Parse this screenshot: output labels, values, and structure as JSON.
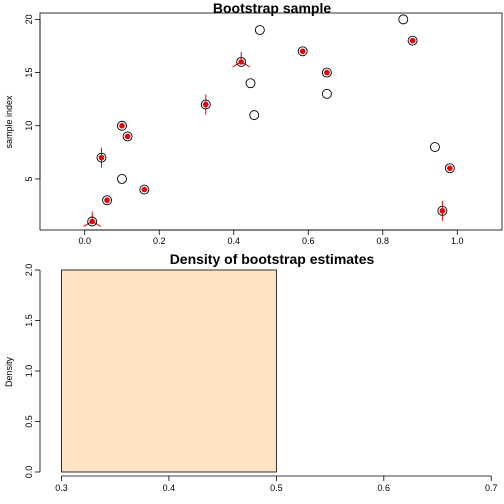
{
  "colors": {
    "point_stroke": "#000000",
    "fill_red": "#e8000b",
    "tick_red": "#e8000b",
    "bar_fill": "#ffe4c4",
    "bar_stroke": "#000000"
  },
  "chart_data": [
    {
      "type": "scatter",
      "title": "Bootstrap sample",
      "xlabel": "",
      "ylabel": "sample index",
      "xlim": [
        -0.12,
        1.12
      ],
      "ylim": [
        0.2,
        20.6
      ],
      "xticks": [
        0.0,
        0.2,
        0.4,
        0.6,
        0.8,
        1.0
      ],
      "xtick_labels": [
        "0.0",
        "0.2",
        "0.4",
        "0.6",
        "0.8",
        "1.0"
      ],
      "yticks": [
        5,
        10,
        15,
        20
      ],
      "ytick_labels": [
        "5",
        "10",
        "15",
        "20"
      ],
      "points": [
        {
          "index": 1,
          "x": 0.02,
          "times": 3
        },
        {
          "index": 2,
          "x": 0.96,
          "times": 2
        },
        {
          "index": 3,
          "x": 0.06,
          "times": 1
        },
        {
          "index": 4,
          "x": 0.16,
          "times": 1
        },
        {
          "index": 5,
          "x": 0.1,
          "times": 0
        },
        {
          "index": 6,
          "x": 0.98,
          "times": 1
        },
        {
          "index": 7,
          "x": 0.045,
          "times": 2
        },
        {
          "index": 8,
          "x": 0.94,
          "times": 0
        },
        {
          "index": 9,
          "x": 0.115,
          "times": 1
        },
        {
          "index": 10,
          "x": 0.1,
          "times": 1
        },
        {
          "index": 11,
          "x": 0.455,
          "times": 0
        },
        {
          "index": 12,
          "x": 0.325,
          "times": 2
        },
        {
          "index": 13,
          "x": 0.65,
          "times": 0
        },
        {
          "index": 14,
          "x": 0.445,
          "times": 0
        },
        {
          "index": 15,
          "x": 0.65,
          "times": 1
        },
        {
          "index": 16,
          "x": 0.42,
          "times": 3
        },
        {
          "index": 17,
          "x": 0.585,
          "times": 1
        },
        {
          "index": 18,
          "x": 0.88,
          "times": 1
        },
        {
          "index": 19,
          "x": 0.47,
          "times": 0
        },
        {
          "index": 20,
          "x": 0.855,
          "times": 0
        }
      ]
    },
    {
      "type": "bar",
      "title": "Density of bootstrap estimates",
      "xlabel": "",
      "ylabel": "Density",
      "xlim": [
        0.28,
        0.71
      ],
      "ylim": [
        0,
        2.0
      ],
      "xticks": [
        0.3,
        0.4,
        0.5,
        0.6,
        0.7
      ],
      "xtick_labels": [
        "0.3",
        "0.4",
        "0.5",
        "0.6",
        "0.7"
      ],
      "yticks": [
        0.0,
        0.5,
        1.0,
        1.5,
        2.0
      ],
      "ytick_labels": [
        "0.0",
        "0.5",
        "1.0",
        "1.5",
        "2.0"
      ],
      "bins": [
        {
          "x0": 0.3,
          "x1": 0.5,
          "density": 2.0
        }
      ]
    }
  ]
}
